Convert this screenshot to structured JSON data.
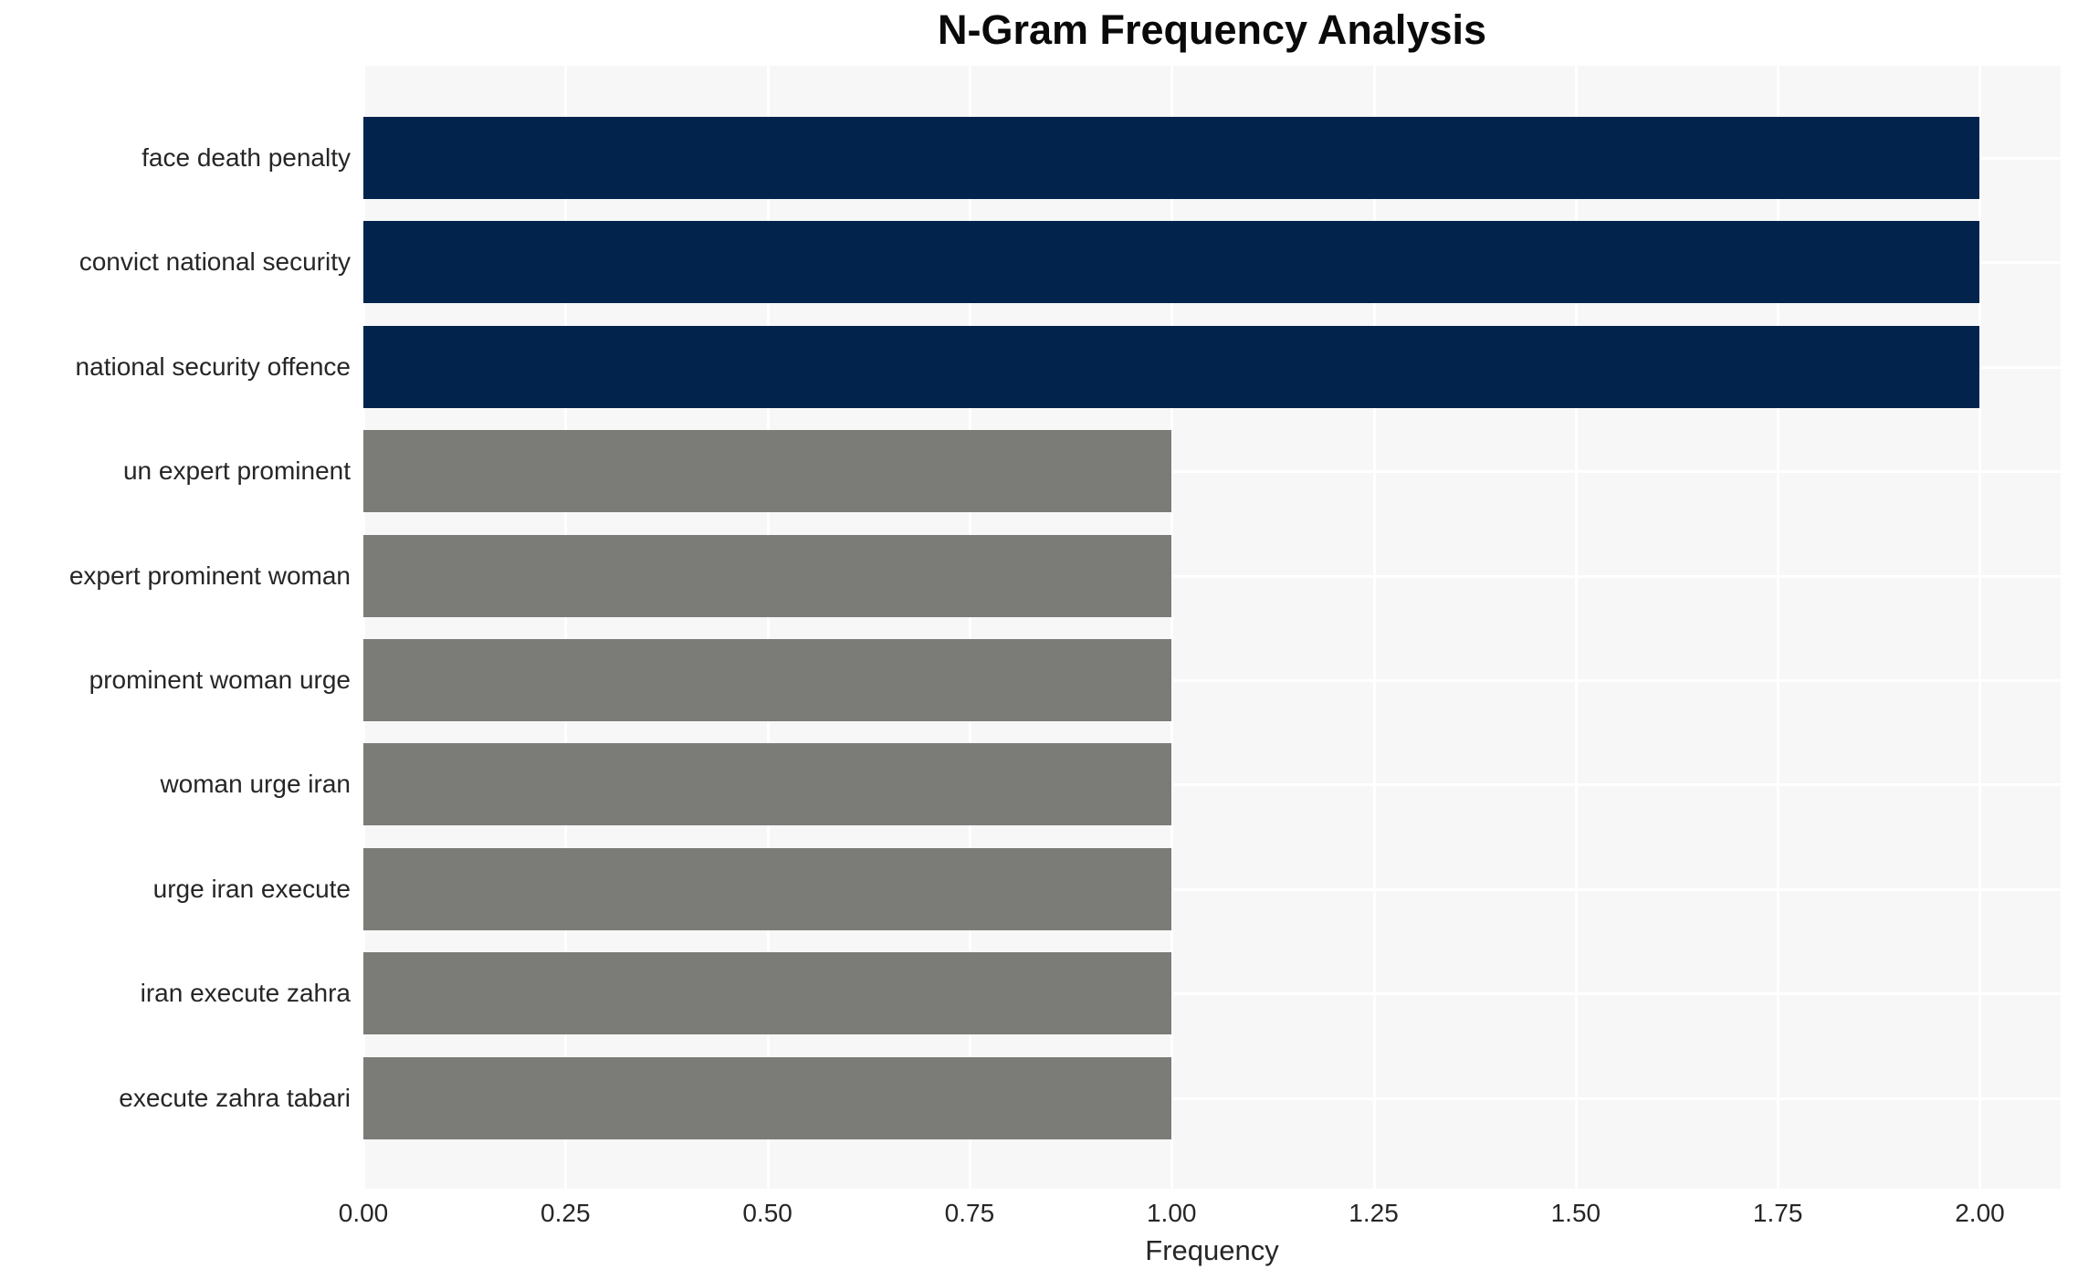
{
  "chart_data": {
    "type": "bar",
    "orientation": "horizontal",
    "title": "N-Gram Frequency Analysis",
    "xlabel": "Frequency",
    "ylabel": "",
    "categories": [
      "face death penalty",
      "convict national security",
      "national security offence",
      "un expert prominent",
      "expert prominent woman",
      "prominent woman urge",
      "woman urge iran",
      "urge iran execute",
      "iran execute zahra",
      "execute zahra tabari"
    ],
    "values": [
      2,
      2,
      2,
      1,
      1,
      1,
      1,
      1,
      1,
      1
    ],
    "bar_colors": [
      "#02234c",
      "#02234c",
      "#02234c",
      "#7b7b78",
      "#7b7b78",
      "#7b7b78",
      "#7b7b78",
      "#7b7b78",
      "#7b7b78",
      "#7b7b78"
    ],
    "xlim": [
      0,
      2.1
    ],
    "xticks": {
      "values": [
        0,
        0.25,
        0.5,
        0.75,
        1.0,
        1.25,
        1.5,
        1.75,
        2.0
      ],
      "labels": [
        "0.00",
        "0.25",
        "0.50",
        "0.75",
        "1.00",
        "1.25",
        "1.50",
        "1.75",
        "2.00"
      ]
    },
    "legend": "none",
    "grid": "on",
    "colors": {
      "panel_background": "#f7f7f7",
      "gridline": "#ffffff",
      "navy_bar": "#02234c",
      "gray_bar": "#7b7b78",
      "text": "#262626",
      "title_text": "#0a0a0a",
      "figure_background": "#ffffff"
    }
  }
}
